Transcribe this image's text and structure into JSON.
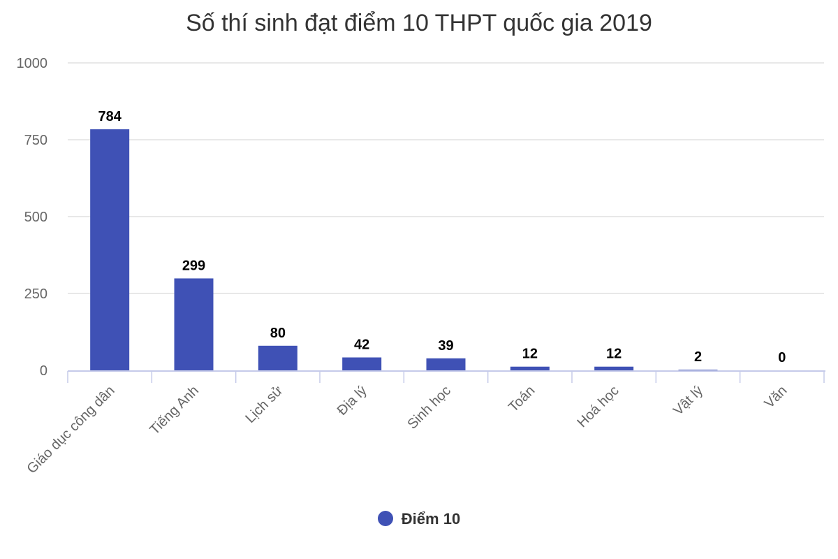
{
  "chart_data": {
    "type": "bar",
    "title": "Số thí sinh đạt điểm 10 THPT quốc gia 2019",
    "categories": [
      "Giáo dục công dân",
      "Tiếng Anh",
      "Lịch sử",
      "Địa lý",
      "Sinh học",
      "Toán",
      "Hoá học",
      "Vật lý",
      "Văn"
    ],
    "series": [
      {
        "name": "Điểm 10",
        "values": [
          784,
          299,
          80,
          42,
          39,
          12,
          12,
          2,
          0
        ]
      }
    ],
    "ylim": [
      0,
      1000
    ],
    "yticks": [
      0,
      250,
      500,
      750,
      1000
    ],
    "grid": true,
    "legend_position": "bottom",
    "colors": {
      "bar": "#3f51b5",
      "grid": "#e0e0e0",
      "axis": "#c5cae9"
    }
  }
}
